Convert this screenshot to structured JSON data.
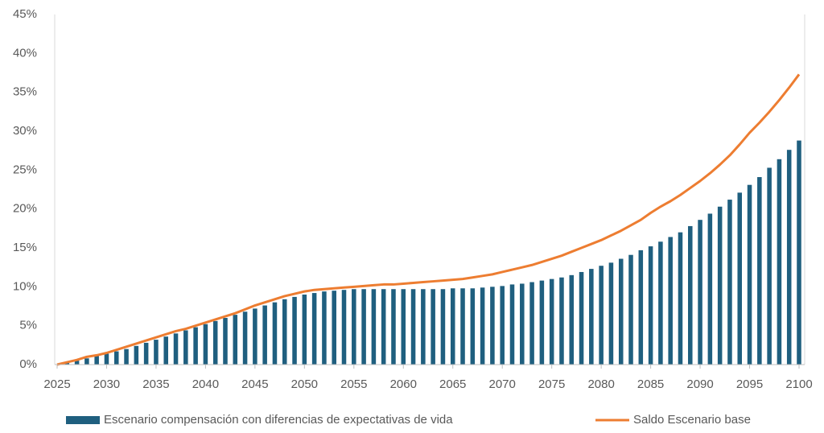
{
  "chart_data": {
    "type": "bar_line",
    "x": [
      2025,
      2026,
      2027,
      2028,
      2029,
      2030,
      2031,
      2032,
      2033,
      2034,
      2035,
      2036,
      2037,
      2038,
      2039,
      2040,
      2041,
      2042,
      2043,
      2044,
      2045,
      2046,
      2047,
      2048,
      2049,
      2050,
      2051,
      2052,
      2053,
      2054,
      2055,
      2056,
      2057,
      2058,
      2059,
      2060,
      2061,
      2062,
      2063,
      2064,
      2065,
      2066,
      2067,
      2068,
      2069,
      2070,
      2071,
      2072,
      2073,
      2074,
      2075,
      2076,
      2077,
      2078,
      2079,
      2080,
      2081,
      2082,
      2083,
      2084,
      2085,
      2086,
      2087,
      2088,
      2089,
      2090,
      2091,
      2092,
      2093,
      2094,
      2095,
      2096,
      2097,
      2098,
      2099,
      2100
    ],
    "series": [
      {
        "name": "Escenario compensación con diferencias de expectativas de vida",
        "color": "#1f5f7f",
        "kind": "bar",
        "values": [
          0,
          0.2,
          0.5,
          0.8,
          1.1,
          1.4,
          1.7,
          2.0,
          2.4,
          2.8,
          3.2,
          3.6,
          4.0,
          4.4,
          4.8,
          5.2,
          5.6,
          6.0,
          6.4,
          6.8,
          7.2,
          7.6,
          8.0,
          8.4,
          8.7,
          9.0,
          9.2,
          9.4,
          9.5,
          9.6,
          9.7,
          9.7,
          9.7,
          9.7,
          9.7,
          9.7,
          9.7,
          9.7,
          9.7,
          9.7,
          9.8,
          9.8,
          9.8,
          9.9,
          10.0,
          10.1,
          10.3,
          10.4,
          10.6,
          10.8,
          11.0,
          11.2,
          11.5,
          11.9,
          12.3,
          12.7,
          13.1,
          13.6,
          14.1,
          14.7,
          15.2,
          15.8,
          16.4,
          17.0,
          17.8,
          18.6,
          19.4,
          20.3,
          21.2,
          22.1,
          23.1,
          24.1,
          25.3,
          26.4,
          27.6,
          28.8
        ]
      },
      {
        "name": "Saldo Escenario base",
        "color": "#ed7d31",
        "kind": "line",
        "values": [
          0,
          0.3,
          0.6,
          1.0,
          1.2,
          1.5,
          1.9,
          2.3,
          2.7,
          3.1,
          3.5,
          3.9,
          4.3,
          4.6,
          5.0,
          5.4,
          5.8,
          6.2,
          6.6,
          7.1,
          7.6,
          8.0,
          8.4,
          8.8,
          9.1,
          9.4,
          9.6,
          9.7,
          9.8,
          9.9,
          10.0,
          10.1,
          10.2,
          10.3,
          10.3,
          10.4,
          10.5,
          10.6,
          10.7,
          10.8,
          10.9,
          11.0,
          11.2,
          11.4,
          11.6,
          11.9,
          12.2,
          12.5,
          12.8,
          13.2,
          13.6,
          14.0,
          14.5,
          15.0,
          15.5,
          16.0,
          16.6,
          17.2,
          17.9,
          18.6,
          19.5,
          20.3,
          21.0,
          21.8,
          22.7,
          23.6,
          24.6,
          25.7,
          26.9,
          28.3,
          29.8,
          31.1,
          32.5,
          34.0,
          35.6,
          37.3
        ]
      }
    ],
    "xlim": [
      2025,
      2100
    ],
    "xticks": [
      2025,
      2030,
      2035,
      2040,
      2045,
      2050,
      2055,
      2060,
      2065,
      2070,
      2075,
      2080,
      2085,
      2090,
      2095,
      2100
    ],
    "ylim": [
      0,
      45
    ],
    "yticks": [
      {
        "value": 0,
        "label": "0%"
      },
      {
        "value": 5,
        "label": "5%"
      },
      {
        "value": 10,
        "label": "10%"
      },
      {
        "value": 15,
        "label": "15%"
      },
      {
        "value": 20,
        "label": "20%"
      },
      {
        "value": 25,
        "label": "25%"
      },
      {
        "value": 30,
        "label": "30%"
      },
      {
        "value": 35,
        "label": "35%"
      },
      {
        "value": 40,
        "label": "40%"
      },
      {
        "value": 45,
        "label": "45%"
      }
    ],
    "legend": "bottom"
  }
}
